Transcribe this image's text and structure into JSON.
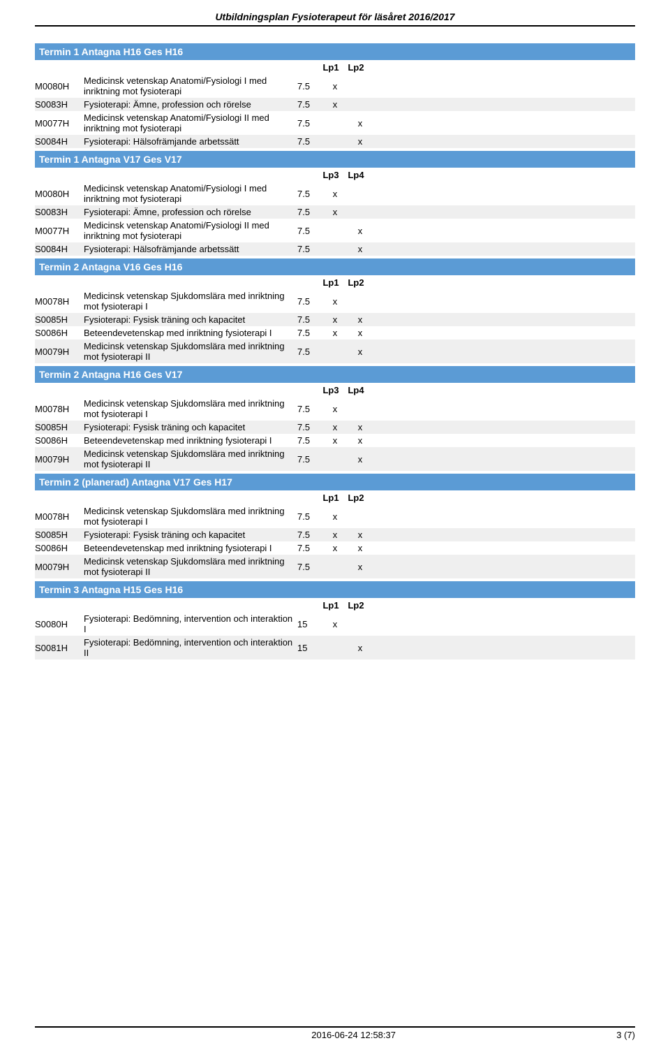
{
  "header_title": "Utbildningsplan Fysioterapeut för läsåret 2016/2017",
  "footer_timestamp": "2016-06-24 12:58:37",
  "footer_pages": "3 (7)",
  "colors": {
    "header_bg": "#5b9bd5",
    "header_text": "#ffffff",
    "row_alt_bg": "#efefef",
    "border": "#000000"
  },
  "fonts": {
    "base_size_pt": 10,
    "header_size_pt": 11
  },
  "terms": [
    {
      "title": "Termin 1  Antagna H16  Ges H16",
      "period_labels": [
        "Lp1",
        "Lp2"
      ],
      "courses": [
        {
          "code": "M0080H",
          "desc": "Medicinsk vetenskap Anatomi/Fysiologi I med inriktning mot fysioterapi",
          "pts": "7.5",
          "marks": [
            "x",
            ""
          ]
        },
        {
          "code": "S0083H",
          "desc": "Fysioterapi: Ämne, profession och rörelse",
          "pts": "7.5",
          "marks": [
            "x",
            ""
          ]
        },
        {
          "code": "M0077H",
          "desc": "Medicinsk vetenskap Anatomi/Fysiologi II med inriktning mot fysioterapi",
          "pts": "7.5",
          "marks": [
            "",
            "x"
          ]
        },
        {
          "code": "S0084H",
          "desc": "Fysioterapi: Hälsofrämjande arbetssätt",
          "pts": "7.5",
          "marks": [
            "",
            "x"
          ]
        }
      ]
    },
    {
      "title": "Termin 1  Antagna V17  Ges V17",
      "period_labels": [
        "Lp3",
        "Lp4"
      ],
      "courses": [
        {
          "code": "M0080H",
          "desc": "Medicinsk vetenskap Anatomi/Fysiologi I med inriktning mot fysioterapi",
          "pts": "7.5",
          "marks": [
            "x",
            ""
          ]
        },
        {
          "code": "S0083H",
          "desc": "Fysioterapi: Ämne, profession och rörelse",
          "pts": "7.5",
          "marks": [
            "x",
            ""
          ]
        },
        {
          "code": "M0077H",
          "desc": "Medicinsk vetenskap Anatomi/Fysiologi II med inriktning mot fysioterapi",
          "pts": "7.5",
          "marks": [
            "",
            "x"
          ]
        },
        {
          "code": "S0084H",
          "desc": "Fysioterapi: Hälsofrämjande arbetssätt",
          "pts": "7.5",
          "marks": [
            "",
            "x"
          ]
        }
      ]
    },
    {
      "title": "Termin 2  Antagna V16  Ges H16",
      "period_labels": [
        "Lp1",
        "Lp2"
      ],
      "courses": [
        {
          "code": "M0078H",
          "desc": "Medicinsk vetenskap Sjukdomslära med inriktning mot fysioterapi I",
          "pts": "7.5",
          "marks": [
            "x",
            ""
          ]
        },
        {
          "code": "S0085H",
          "desc": "Fysioterapi: Fysisk träning och kapacitet",
          "pts": "7.5",
          "marks": [
            "x",
            "x"
          ]
        },
        {
          "code": "S0086H",
          "desc": "Beteendevetenskap med inriktning fysioterapi I",
          "pts": "7.5",
          "marks": [
            "x",
            "x"
          ]
        },
        {
          "code": "M0079H",
          "desc": "Medicinsk vetenskap Sjukdomslära med inriktning mot fysioterapi II",
          "pts": "7.5",
          "marks": [
            "",
            "x"
          ]
        }
      ]
    },
    {
      "title": "Termin 2  Antagna H16  Ges V17",
      "period_labels": [
        "Lp3",
        "Lp4"
      ],
      "courses": [
        {
          "code": "M0078H",
          "desc": "Medicinsk vetenskap Sjukdomslära med inriktning mot fysioterapi I",
          "pts": "7.5",
          "marks": [
            "x",
            ""
          ]
        },
        {
          "code": "S0085H",
          "desc": "Fysioterapi: Fysisk träning och kapacitet",
          "pts": "7.5",
          "marks": [
            "x",
            "x"
          ]
        },
        {
          "code": "S0086H",
          "desc": "Beteendevetenskap med inriktning fysioterapi I",
          "pts": "7.5",
          "marks": [
            "x",
            "x"
          ]
        },
        {
          "code": "M0079H",
          "desc": "Medicinsk vetenskap Sjukdomslära med inriktning mot fysioterapi II",
          "pts": "7.5",
          "marks": [
            "",
            "x"
          ]
        }
      ]
    },
    {
      "title": "Termin 2  (planerad) Antagna V17  Ges H17",
      "period_labels": [
        "Lp1",
        "Lp2"
      ],
      "courses": [
        {
          "code": "M0078H",
          "desc": "Medicinsk vetenskap Sjukdomslära med inriktning mot fysioterapi I",
          "pts": "7.5",
          "marks": [
            "x",
            ""
          ]
        },
        {
          "code": "S0085H",
          "desc": "Fysioterapi: Fysisk träning och kapacitet",
          "pts": "7.5",
          "marks": [
            "x",
            "x"
          ]
        },
        {
          "code": "S0086H",
          "desc": "Beteendevetenskap med inriktning fysioterapi I",
          "pts": "7.5",
          "marks": [
            "x",
            "x"
          ]
        },
        {
          "code": "M0079H",
          "desc": "Medicinsk vetenskap Sjukdomslära med inriktning mot fysioterapi II",
          "pts": "7.5",
          "marks": [
            "",
            "x"
          ]
        }
      ]
    },
    {
      "title": "Termin 3  Antagna H15  Ges H16",
      "period_labels": [
        "Lp1",
        "Lp2"
      ],
      "courses": [
        {
          "code": "S0080H",
          "desc": "Fysioterapi: Bedömning, intervention och interaktion I",
          "pts": "15",
          "marks": [
            "x",
            ""
          ]
        },
        {
          "code": "S0081H",
          "desc": "Fysioterapi: Bedömning, intervention och interaktion II",
          "pts": "15",
          "marks": [
            "",
            "x"
          ]
        }
      ]
    }
  ]
}
